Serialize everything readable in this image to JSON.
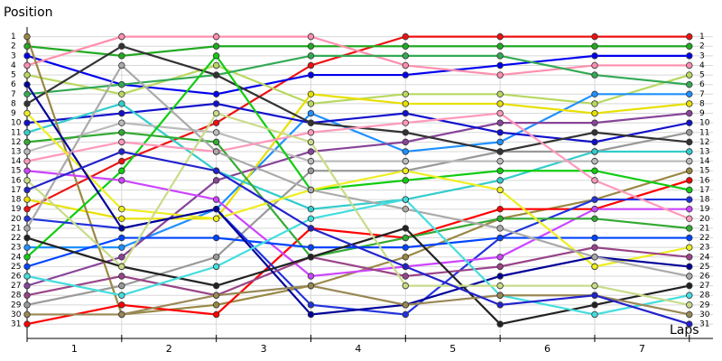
{
  "chart_data": {
    "type": "line",
    "y_label": "Position",
    "x_label": "Laps",
    "x": [
      0,
      1,
      2,
      3,
      4,
      5,
      6,
      7
    ],
    "xlim": [
      0,
      7.25
    ],
    "xticks": [
      0,
      1,
      2,
      3,
      4,
      5,
      6,
      7
    ],
    "lap_labels": [
      1,
      2,
      3,
      4,
      5,
      6,
      7
    ],
    "ylim": [
      32.5,
      0
    ],
    "yticks": [
      1,
      2,
      3,
      4,
      5,
      6,
      7,
      8,
      9,
      10,
      11,
      12,
      13,
      14,
      15,
      16,
      17,
      18,
      19,
      20,
      21,
      22,
      23,
      24,
      25,
      26,
      27,
      28,
      29,
      30,
      31
    ],
    "grid": true,
    "series": [
      {
        "color": "#ee1111",
        "values": [
          19,
          14,
          10,
          4,
          1,
          1,
          1,
          1
        ]
      },
      {
        "color": "#22aa22",
        "values": [
          2,
          3,
          2,
          2,
          2,
          2,
          2,
          2
        ]
      },
      {
        "color": "#0000ee",
        "values": [
          3,
          6,
          7,
          5,
          5,
          4,
          3,
          3
        ]
      },
      {
        "color": "#ff8faf",
        "values": [
          4,
          1,
          1,
          1,
          4,
          5,
          4,
          4
        ]
      },
      {
        "color": "#b8d860",
        "values": [
          5,
          7,
          4,
          8,
          7,
          7,
          8,
          5
        ]
      },
      {
        "color": "#33aa55",
        "values": [
          7,
          6,
          5,
          3,
          3,
          3,
          5,
          6
        ]
      },
      {
        "color": "#1e90ff",
        "values": [
          23,
          23,
          19,
          9,
          13,
          12,
          7,
          7
        ]
      },
      {
        "color": "#e8e000",
        "values": [
          18,
          20,
          20,
          7,
          8,
          8,
          9,
          8
        ]
      },
      {
        "color": "#884499",
        "values": [
          27,
          24,
          16,
          13,
          12,
          10,
          10,
          9
        ]
      },
      {
        "color": "#1111cc",
        "values": [
          10,
          9,
          8,
          10,
          9,
          11,
          12,
          10
        ]
      },
      {
        "color": "#999999",
        "values": [
          29,
          27,
          24,
          15,
          15,
          13,
          13,
          11
        ]
      },
      {
        "color": "#333333",
        "values": [
          8,
          2,
          5,
          10,
          11,
          13,
          11,
          12
        ]
      },
      {
        "color": "#33cccc",
        "values": [
          11,
          8,
          15,
          19,
          18,
          16,
          13,
          13
        ]
      },
      {
        "color": "#bbbbbb",
        "values": [
          13,
          10,
          11,
          14,
          14,
          14,
          14,
          14
        ]
      },
      {
        "color": "#998844",
        "values": [
          1,
          30,
          29,
          27,
          24,
          20,
          18,
          15
        ]
      },
      {
        "color": "#ff0000",
        "values": [
          31,
          29,
          30,
          21,
          22,
          19,
          19,
          16
        ]
      },
      {
        "color": "#11cc11",
        "values": [
          24,
          15,
          3,
          17,
          16,
          15,
          15,
          17
        ]
      },
      {
        "color": "#2233dd",
        "values": [
          20,
          21,
          19,
          29,
          30,
          22,
          18,
          18
        ]
      },
      {
        "color": "#cc44ff",
        "values": [
          15,
          16,
          18,
          26,
          25,
          24,
          19,
          19
        ]
      },
      {
        "color": "#ff99bb",
        "values": [
          14,
          12,
          13,
          11,
          10,
          9,
          16,
          20
        ]
      },
      {
        "color": "#33aa33",
        "values": [
          12,
          11,
          12,
          24,
          22,
          20,
          20,
          21
        ]
      },
      {
        "color": "#0044ff",
        "values": [
          25,
          22,
          22,
          23,
          23,
          22,
          22,
          22
        ]
      },
      {
        "color": "#eeee22",
        "values": [
          9,
          19,
          20,
          17,
          15,
          17,
          25,
          23
        ]
      },
      {
        "color": "#994488",
        "values": [
          28,
          26,
          28,
          24,
          26,
          25,
          23,
          24
        ]
      },
      {
        "color": "#000099",
        "values": [
          6,
          21,
          19,
          30,
          29,
          26,
          24,
          25
        ]
      },
      {
        "color": "#aaaaaa",
        "values": [
          21,
          4,
          13,
          17,
          19,
          21,
          24,
          26
        ]
      },
      {
        "color": "#222222",
        "values": [
          22,
          25,
          27,
          24,
          21,
          31,
          29,
          27
        ]
      },
      {
        "color": "#44dddd",
        "values": [
          26,
          28,
          25,
          20,
          18,
          28,
          30,
          28
        ]
      },
      {
        "color": "#c8dc88",
        "values": [
          16,
          25,
          9,
          12,
          27,
          27,
          27,
          29
        ]
      },
      {
        "color": "#998855",
        "values": [
          30,
          30,
          28,
          27,
          29,
          28,
          28,
          30
        ]
      },
      {
        "color": "#2222cc",
        "values": [
          17,
          13,
          15,
          21,
          25,
          29,
          28,
          31
        ]
      }
    ]
  }
}
